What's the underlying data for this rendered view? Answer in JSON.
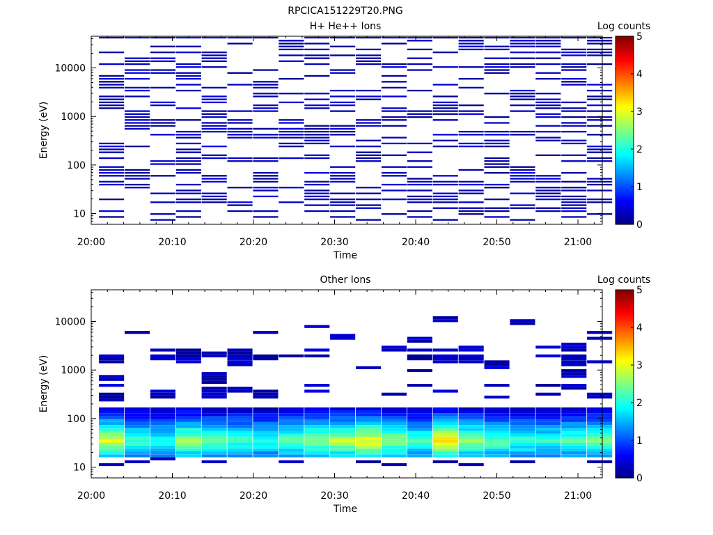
{
  "figure_title": "RPCICA151229T20.PNG",
  "chart_data": [
    {
      "type": "heatmap",
      "title": "H+ He++ Ions",
      "xlabel": "Time",
      "ylabel": "Energy (eV)",
      "yscale": "log",
      "ylim": [
        6,
        45000
      ],
      "xlim": [
        "20:00",
        "21:03"
      ],
      "x_tick_labels": [
        "20:00",
        "20:10",
        "20:20",
        "20:30",
        "20:40",
        "20:50",
        "21:00"
      ],
      "y_tick_labels": [
        "10",
        "100",
        "1000",
        "10000"
      ],
      "colorbar": {
        "label": "Log counts",
        "range": [
          0,
          5
        ],
        "tick_labels": [
          "0",
          "1",
          "2",
          "3",
          "4",
          "5"
        ]
      },
      "time_columns": [
        "20:02:30",
        "20:05:40",
        "20:08:50",
        "20:12:00",
        "20:15:10",
        "20:18:20",
        "20:21:30",
        "20:24:40",
        "20:27:50",
        "20:31:00",
        "20:34:10",
        "20:37:20",
        "20:40:30",
        "20:43:40",
        "20:46:50",
        "20:50:00",
        "20:53:10",
        "20:56:20",
        "20:59:30",
        "21:02:40"
      ],
      "activity": [
        [
          [
            0.05,
            0.05
          ],
          [
            0.2,
            0.3
          ],
          [
            0.35,
            0.45
          ],
          [
            0.6,
            0.85
          ]
        ],
        [
          [
            0.25,
            0.3
          ],
          [
            0.4,
            0.6
          ],
          [
            0.7,
            0.9
          ]
        ],
        [
          [
            0.45,
            0.55
          ],
          [
            0.8,
            0.95
          ]
        ],
        [
          [
            0.3,
            0.5
          ],
          [
            0.7,
            0.9
          ]
        ],
        [
          [
            0.1,
            0.25
          ],
          [
            0.45,
            0.7
          ],
          [
            0.8,
            0.95
          ]
        ],
        [
          [
            0.05,
            0.15
          ],
          [
            0.3,
            0.55
          ]
        ],
        [
          [
            0.15,
            0.35
          ],
          [
            0.6,
            0.75
          ]
        ],
        [
          [
            0.3,
            0.5
          ],
          [
            0.75,
            1.0
          ]
        ],
        [
          [
            0.1,
            0.2
          ],
          [
            0.4,
            0.65
          ],
          [
            0.85,
            1.0
          ]
        ],
        [
          [
            0.05,
            0.25
          ],
          [
            0.45,
            0.6
          ],
          [
            0.7,
            0.9
          ]
        ],
        [
          [
            0.05,
            0.2
          ],
          [
            0.35,
            0.6
          ],
          [
            0.8,
            1.0
          ]
        ],
        [
          [
            0.1,
            0.3
          ],
          [
            0.5,
            0.75
          ]
        ],
        [
          [
            0.05,
            0.3
          ],
          [
            0.55,
            0.75
          ],
          [
            0.85,
            1.0
          ]
        ],
        [
          [
            0.05,
            0.25
          ],
          [
            0.4,
            0.7
          ]
        ],
        [
          [
            0.05,
            0.2
          ],
          [
            0.4,
            0.65
          ],
          [
            0.85,
            1.0
          ]
        ],
        [
          [
            0.0,
            0.15
          ],
          [
            0.3,
            0.55
          ],
          [
            0.7,
            0.9
          ]
        ],
        [
          [
            0.15,
            0.3
          ],
          [
            0.55,
            0.75
          ],
          [
            0.85,
            1.0
          ]
        ],
        [
          [
            0.1,
            0.25
          ],
          [
            0.45,
            0.7
          ],
          [
            0.8,
            1.0
          ]
        ],
        [
          [
            0.05,
            0.2
          ],
          [
            0.35,
            0.55
          ],
          [
            0.75,
            0.95
          ]
        ],
        [
          [
            0.05,
            0.25
          ],
          [
            0.45,
            0.7
          ],
          [
            0.8,
            1.0
          ]
        ]
      ],
      "values_log_counts": [
        [
          0.2,
          0.5
        ],
        [
          0.4,
          0.6
        ],
        [
          0.5,
          0.3
        ]
      ]
    },
    {
      "type": "heatmap",
      "title": "Other Ions",
      "xlabel": "Time",
      "ylabel": "Energy (eV)",
      "yscale": "log",
      "ylim": [
        6,
        45000
      ],
      "xlim": [
        "20:00",
        "21:03"
      ],
      "x_tick_labels": [
        "20:00",
        "20:10",
        "20:20",
        "20:30",
        "20:40",
        "20:50",
        "21:00"
      ],
      "y_tick_labels": [
        "10",
        "100",
        "1000",
        "10000"
      ],
      "colorbar": {
        "label": "Log counts",
        "range": [
          0,
          5
        ],
        "tick_labels": [
          "0",
          "1",
          "2",
          "3",
          "4",
          "5"
        ]
      },
      "time_columns": [
        "20:02:30",
        "20:05:40",
        "20:08:50",
        "20:12:00",
        "20:15:10",
        "20:18:20",
        "20:21:30",
        "20:24:40",
        "20:27:50",
        "20:31:00",
        "20:34:10",
        "20:37:20",
        "20:40:30",
        "20:43:40",
        "20:46:50",
        "20:50:00",
        "20:53:10",
        "20:56:20",
        "20:59:30",
        "21:02:40"
      ],
      "band_energy_eV": [
        20,
        150
      ],
      "band_peak_energy_eV": 35,
      "peak_log_counts": [
        3.2,
        2.4,
        2.2,
        2.9,
        2.5,
        2.4,
        2.3,
        2.6,
        2.8,
        3.0,
        3.3,
        2.8,
        2.5,
        3.5,
        2.8,
        2.6,
        2.4,
        2.3,
        2.5,
        2.6
      ],
      "scattered_high_energy_eV": [
        [
          1900,
          1600,
          700,
          500,
          300,
          250
        ],
        [
          5800
        ],
        [
          2600,
          1800,
          380,
          300
        ],
        [
          2500,
          2200,
          1800,
          1500
        ],
        [
          2300,
          2000,
          800,
          600,
          400,
          300
        ],
        [
          2400,
          2000,
          1800,
          1400,
          400
        ],
        [
          5800,
          1800,
          380,
          300
        ],
        [
          2000
        ],
        [
          7700,
          2500,
          2000,
          500,
          380
        ],
        [
          5000,
          4500
        ],
        [
          1100
        ],
        [
          2900,
          2600,
          320
        ],
        [
          4500,
          3800,
          2500,
          2000,
          1800,
          950,
          500
        ],
        [
          11000,
          2500,
          2000,
          1800,
          1500,
          350
        ],
        [
          2800,
          2500,
          2000,
          1800,
          1500
        ],
        [
          1500,
          1200,
          480,
          280
        ],
        [
          9600
        ],
        [
          3000,
          1900,
          2000,
          500,
          320
        ],
        [
          3200,
          2800,
          2000,
          1600,
          1300,
          1000,
          800,
          450
        ],
        [
          6200,
          4500,
          1500,
          300,
          130
        ]
      ]
    }
  ]
}
